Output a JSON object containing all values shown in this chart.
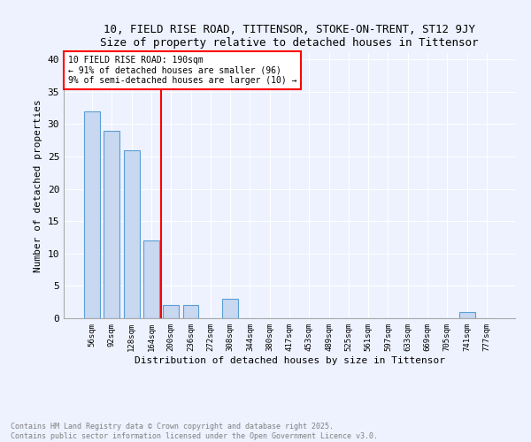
{
  "title1": "10, FIELD RISE ROAD, TITTENSOR, STOKE-ON-TRENT, ST12 9JY",
  "title2": "Size of property relative to detached houses in Tittensor",
  "xlabel": "Distribution of detached houses by size in Tittensor",
  "ylabel": "Number of detached properties",
  "categories": [
    "56sqm",
    "92sqm",
    "128sqm",
    "164sqm",
    "200sqm",
    "236sqm",
    "272sqm",
    "308sqm",
    "344sqm",
    "380sqm",
    "417sqm",
    "453sqm",
    "489sqm",
    "525sqm",
    "561sqm",
    "597sqm",
    "633sqm",
    "669sqm",
    "705sqm",
    "741sqm",
    "777sqm"
  ],
  "values": [
    32,
    29,
    26,
    12,
    2,
    2,
    0,
    3,
    0,
    0,
    0,
    0,
    0,
    0,
    0,
    0,
    0,
    0,
    0,
    1,
    0
  ],
  "bar_color": "#c8d8f0",
  "bar_edge_color": "#5a9fd4",
  "annotation_line1": "10 FIELD RISE ROAD: 190sqm",
  "annotation_line2": "← 91% of detached houses are smaller (96)",
  "annotation_line3": "9% of semi-detached houses are larger (10) →",
  "annotation_box_color": "white",
  "annotation_box_edge": "red",
  "vline_color": "red",
  "ylim": [
    0,
    41
  ],
  "yticks": [
    0,
    5,
    10,
    15,
    20,
    25,
    30,
    35,
    40
  ],
  "footer1": "Contains HM Land Registry data © Crown copyright and database right 2025.",
  "footer2": "Contains public sector information licensed under the Open Government Licence v3.0.",
  "bg_color": "#eef2ff",
  "plot_bg_color": "#eef2ff"
}
